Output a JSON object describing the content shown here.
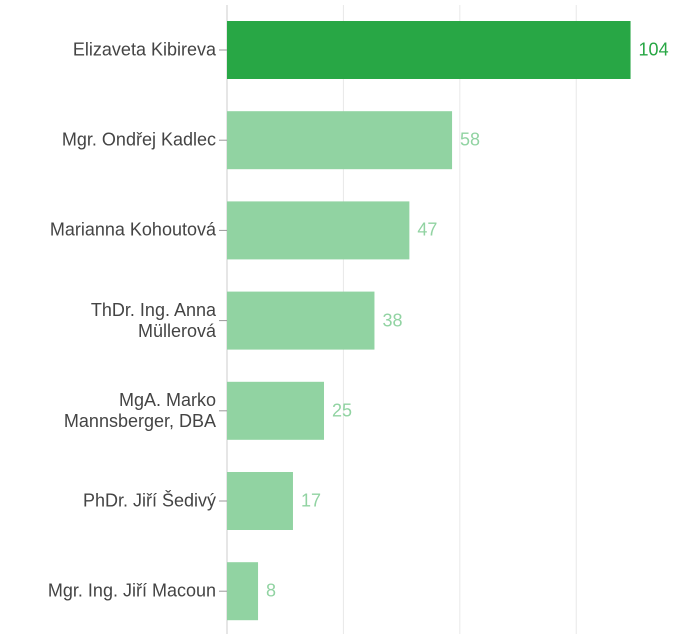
{
  "chart_data": {
    "type": "bar",
    "orientation": "horizontal",
    "categories": [
      "Elizaveta Kibireva",
      "Mgr. Ondřej Kadlec",
      "Marianna Kohoutová",
      "ThDr. Ing. Anna Müllerová",
      "MgA. Marko Mannsberger, DBA",
      "PhDr. Jiří Šedivý",
      "Mgr. Ing. Jiří Macoun"
    ],
    "values": [
      104,
      58,
      47,
      38,
      25,
      17,
      8
    ],
    "colors": [
      "#28a745",
      "#91d3a2",
      "#91d3a2",
      "#91d3a2",
      "#91d3a2",
      "#91d3a2",
      "#91d3a2"
    ],
    "xlim": [
      0,
      117
    ],
    "xticks": [
      0,
      30,
      60,
      90
    ],
    "grid": true
  }
}
